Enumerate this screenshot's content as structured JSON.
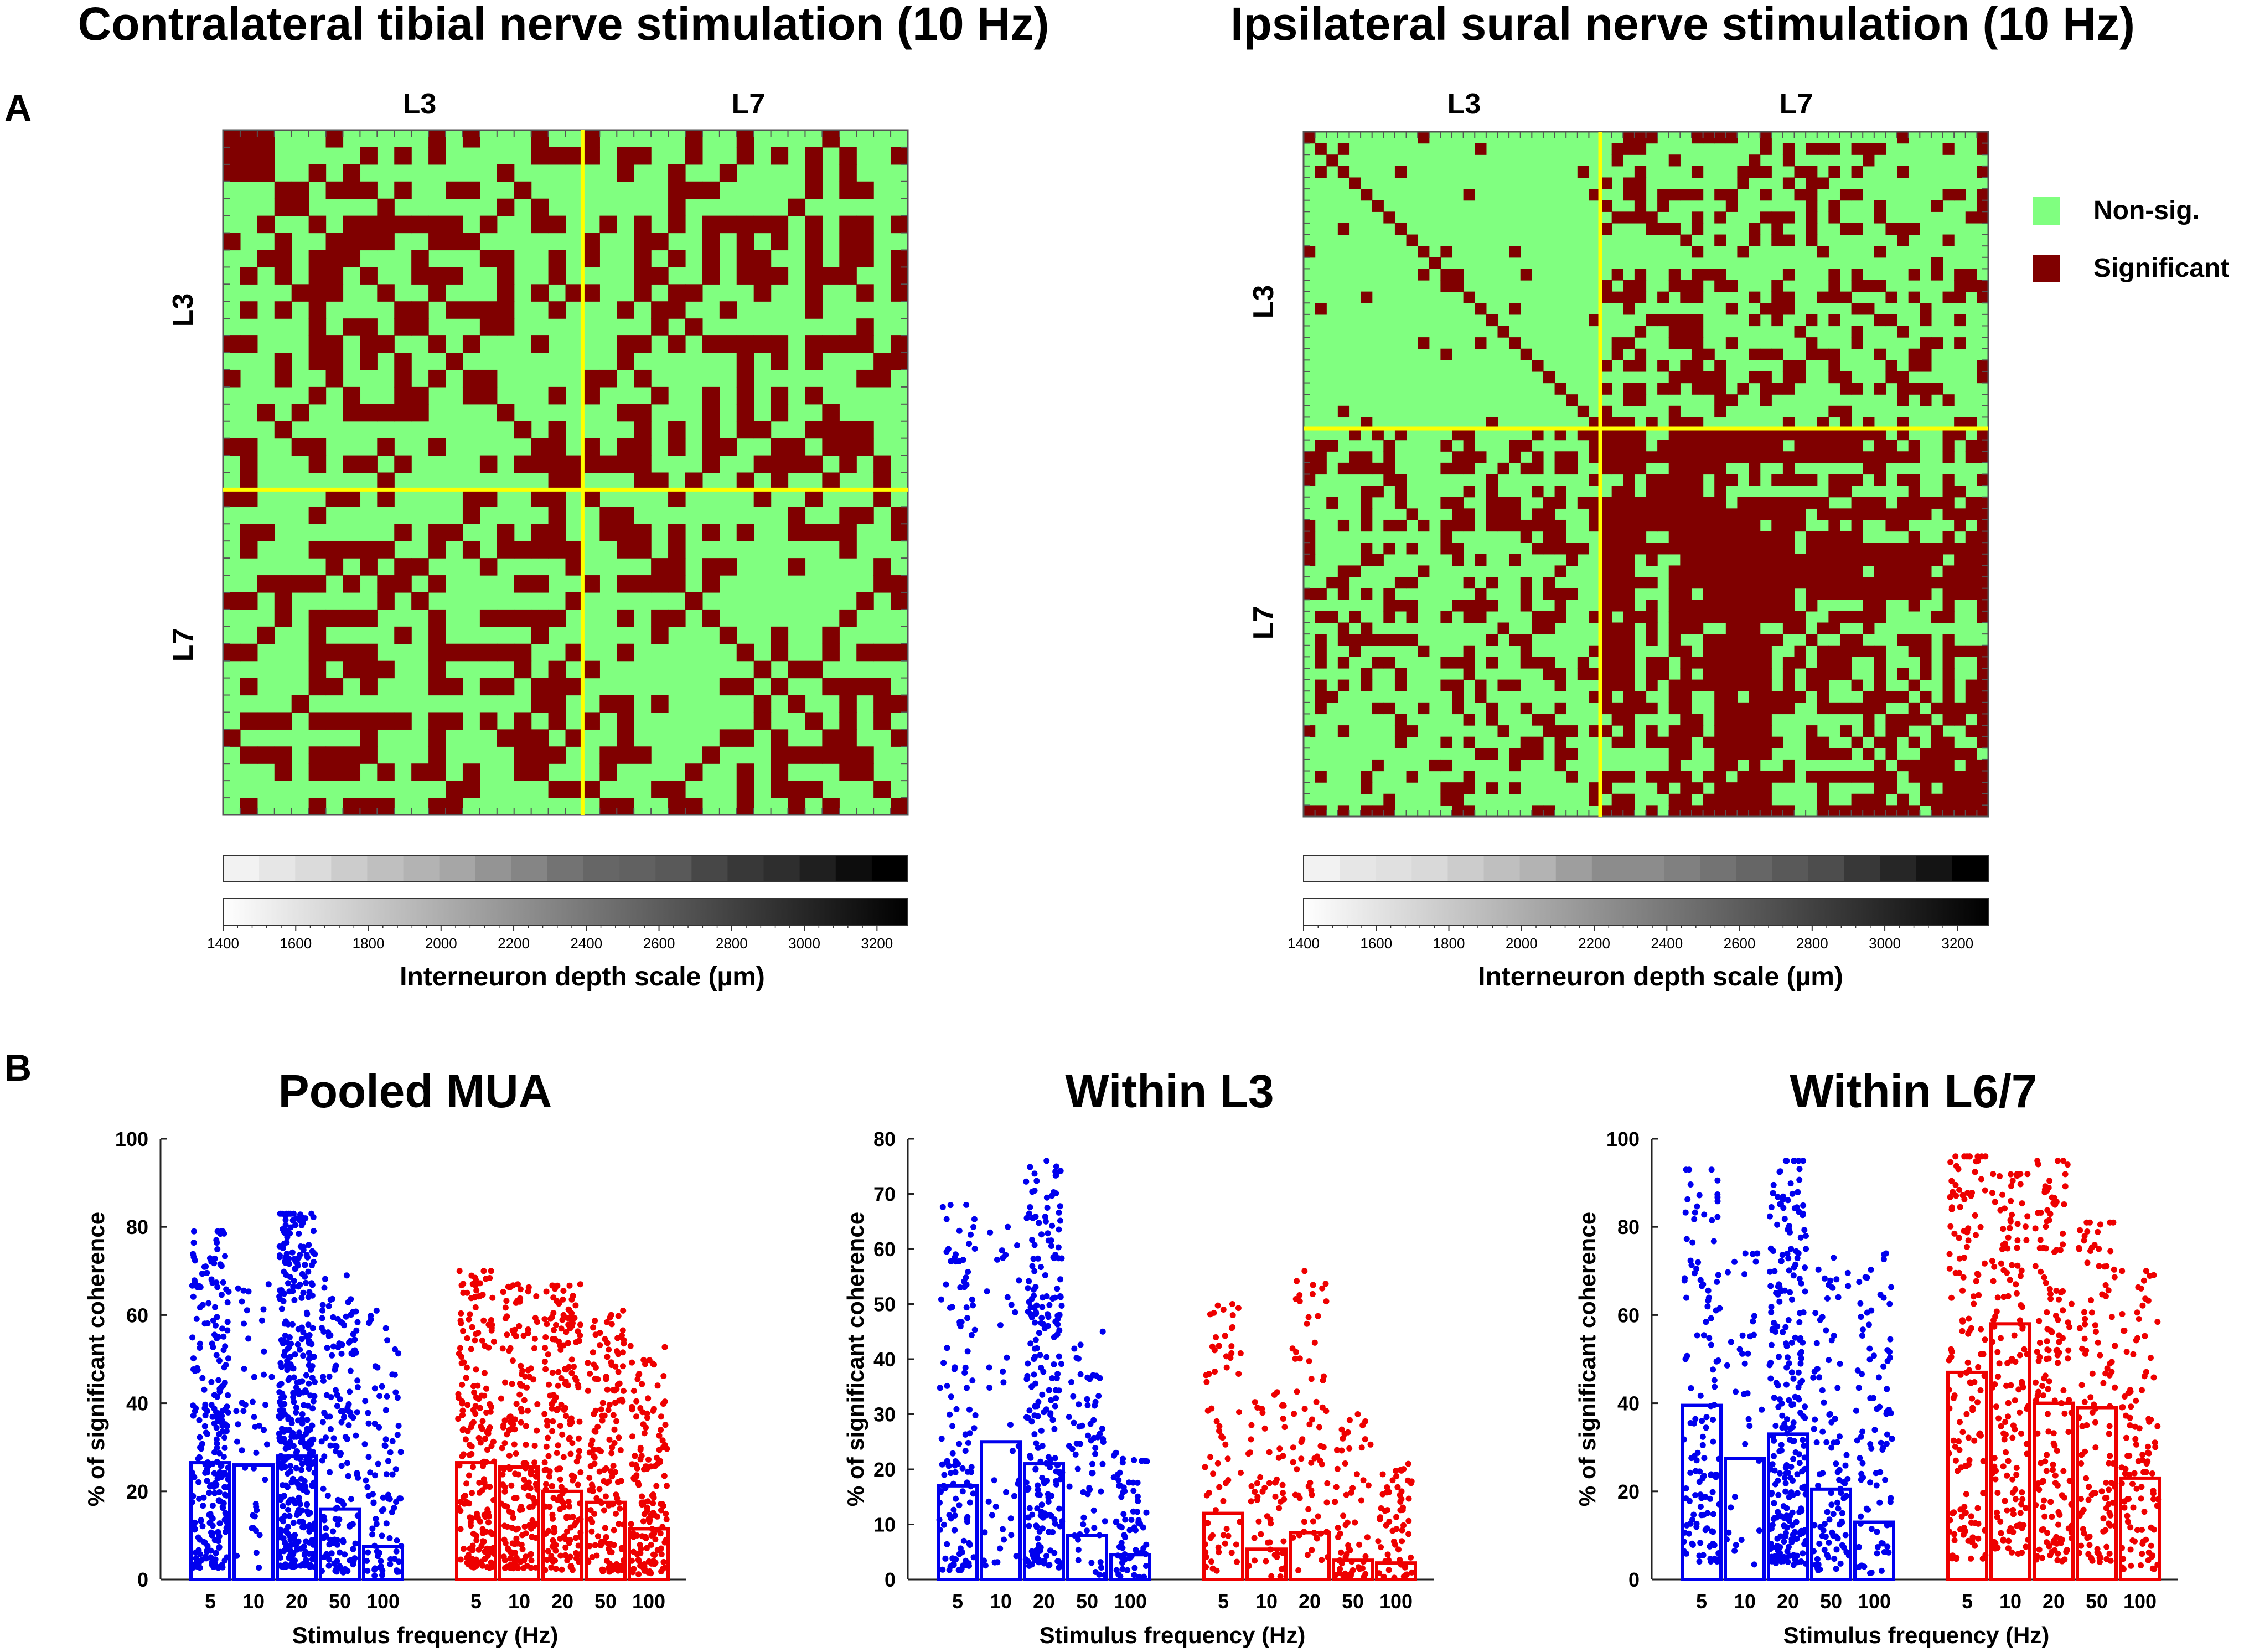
{
  "colors": {
    "nonsig": "#80ff80",
    "sig": "#800000",
    "divider": "#ffff00",
    "blue": "#0000ee",
    "red": "#ee0000"
  },
  "panel_labels": {
    "a": "A",
    "b": "B"
  },
  "chart_data": [
    {
      "type": "heatmap",
      "id": "tibial",
      "title": "Contralateral tibial nerve stimulation (10 Hz)",
      "region_labels": {
        "top_left": "L3",
        "top_right": "L7",
        "side_top": "L3",
        "side_bottom": "L7"
      },
      "n": 40,
      "split": 21,
      "seed": 7,
      "density": {
        "l3l3": 0.38,
        "cross": 0.34,
        "l7l7": 0.3
      },
      "grayscale": {
        "stops": [
          0.05,
          0.1,
          0.14,
          0.2,
          0.25,
          0.3,
          0.35,
          0.42,
          0.48,
          0.55,
          0.6,
          0.62,
          0.65,
          0.72,
          0.78,
          0.82,
          0.88,
          0.95,
          1.0
        ],
        "tick_labels": [
          "1400",
          "1600",
          "1800",
          "2000",
          "2200",
          "2400",
          "2600",
          "2800",
          "3000",
          "3200"
        ],
        "xlabel": "Interneuron depth scale (µm)"
      },
      "legend": null
    },
    {
      "type": "heatmap",
      "id": "sural",
      "title": "Ipsilateral sural nerve stimulation (10 Hz)",
      "region_labels": {
        "top_left": "L3",
        "top_right": "L7",
        "side_top": "L3",
        "side_bottom": "L7"
      },
      "n": 60,
      "split": 26,
      "seed": 13,
      "density": {
        "l3l3": 0.06,
        "cross": 0.28,
        "l7l7": 0.78
      },
      "grayscale": {
        "stops": [
          0.05,
          0.1,
          0.12,
          0.15,
          0.2,
          0.25,
          0.3,
          0.38,
          0.45,
          0.45,
          0.5,
          0.55,
          0.6,
          0.65,
          0.7,
          0.78,
          0.85,
          0.92,
          1.0
        ],
        "tick_labels": [
          "1400",
          "1600",
          "1800",
          "2000",
          "2200",
          "2400",
          "2600",
          "2800",
          "3000",
          "3200"
        ],
        "xlabel": "Interneuron depth scale (µm)"
      },
      "legend": {
        "items": [
          {
            "label": "Non-sig.",
            "color": "nonsig"
          },
          {
            "label": "Significant",
            "color": "sig"
          }
        ]
      }
    },
    {
      "type": "bar",
      "id": "pooled",
      "title": "Pooled MUA",
      "ylabel": "% of significant coherence",
      "xlabel": "Stimulus frequency (Hz)",
      "ylim": [
        0,
        100
      ],
      "yticks": [
        "0",
        "20",
        "40",
        "60",
        "80",
        "100"
      ],
      "categories": [
        "5",
        "10",
        "20",
        "50",
        "100"
      ],
      "series": [
        {
          "name": "tibial",
          "color": "blue",
          "values": [
            26.5,
            26.0,
            28.0,
            16.0,
            7.5
          ],
          "points": [
            260,
            45,
            400,
            160,
            90
          ],
          "max": [
            79,
            67,
            83,
            69,
            61
          ]
        },
        {
          "name": "sural",
          "color": "red",
          "values": [
            26.5,
            25.5,
            20.0,
            17.5,
            11.5
          ],
          "points": [
            200,
            180,
            200,
            160,
            150
          ],
          "max": [
            70,
            67,
            67,
            61,
            53
          ]
        }
      ]
    },
    {
      "type": "bar",
      "id": "l3",
      "title": "Within L3",
      "ylabel": "% of significant coherence",
      "xlabel": "Stimulus frequency (Hz)",
      "ylim": [
        0,
        80
      ],
      "yticks": [
        "0",
        "10",
        "20",
        "30",
        "40",
        "50",
        "60",
        "70",
        "80"
      ],
      "categories": [
        "5",
        "10",
        "20",
        "50",
        "100"
      ],
      "series": [
        {
          "name": "tibial",
          "color": "blue",
          "values": [
            17.0,
            25.0,
            21.0,
            8.0,
            4.5
          ],
          "points": [
            130,
            40,
            230,
            70,
            70
          ],
          "max": [
            68,
            64,
            76,
            45,
            23
          ]
        },
        {
          "name": "sural",
          "color": "red",
          "values": [
            12.0,
            5.5,
            8.5,
            3.5,
            3.0
          ],
          "points": [
            70,
            60,
            70,
            60,
            60
          ],
          "max": [
            50,
            34,
            56,
            30,
            21
          ]
        }
      ]
    },
    {
      "type": "bar",
      "id": "l67",
      "title": "Within L6/7",
      "ylabel": "% of significant coherence",
      "xlabel": "Stimulus frequency (Hz)",
      "ylim": [
        0,
        100
      ],
      "yticks": [
        "0",
        "20",
        "40",
        "60",
        "80",
        "100"
      ],
      "categories": [
        "5",
        "10",
        "20",
        "50",
        "100"
      ],
      "series": [
        {
          "name": "tibial",
          "color": "blue",
          "values": [
            39.5,
            27.5,
            33.0,
            20.5,
            13.0
          ],
          "points": [
            130,
            35,
            260,
            100,
            90
          ],
          "max": [
            93,
            74,
            95,
            73,
            74
          ]
        },
        {
          "name": "sural",
          "color": "red",
          "values": [
            47.0,
            58.0,
            40.0,
            39.0,
            23.0
          ],
          "points": [
            150,
            150,
            160,
            120,
            110
          ],
          "max": [
            96,
            92,
            95,
            81,
            70
          ]
        }
      ]
    }
  ]
}
